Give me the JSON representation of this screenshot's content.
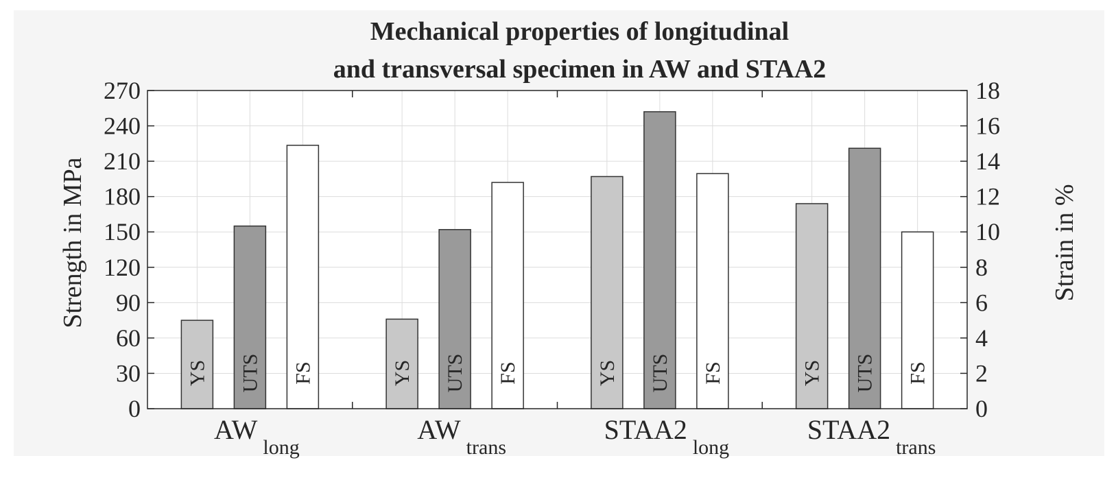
{
  "chart_data": {
    "type": "bar",
    "title_lines": [
      "Mechanical properties of longitudinal",
      "and transversal specimen in AW and STAA2"
    ],
    "ylabel": "Strength in MPa",
    "y2label": "Strain in %",
    "ylim": [
      0,
      270
    ],
    "yticks": [
      "0",
      "30",
      "60",
      "90",
      "120",
      "150",
      "180",
      "210",
      "240",
      "270"
    ],
    "y2lim": [
      0,
      18
    ],
    "y2ticks": [
      "0",
      "2",
      "4",
      "6",
      "8",
      "10",
      "12",
      "14",
      "16",
      "18"
    ],
    "grid": true,
    "categories": [
      {
        "main": "AW",
        "sub": "long"
      },
      {
        "main": "AW",
        "sub": "trans"
      },
      {
        "main": "STAA2",
        "sub": "long"
      },
      {
        "main": "STAA2",
        "sub": "trans"
      }
    ],
    "series": [
      {
        "name": "YS",
        "axis": "left",
        "color": "#c8c8c8",
        "values": [
          75,
          76,
          197,
          174
        ]
      },
      {
        "name": "UTS",
        "axis": "left",
        "color": "#9a9a9a",
        "values": [
          155,
          152,
          252,
          221
        ]
      },
      {
        "name": "FS",
        "axis": "right",
        "color": "#ffffff",
        "values": [
          14.9,
          12.8,
          13.3,
          10.0
        ]
      }
    ]
  }
}
